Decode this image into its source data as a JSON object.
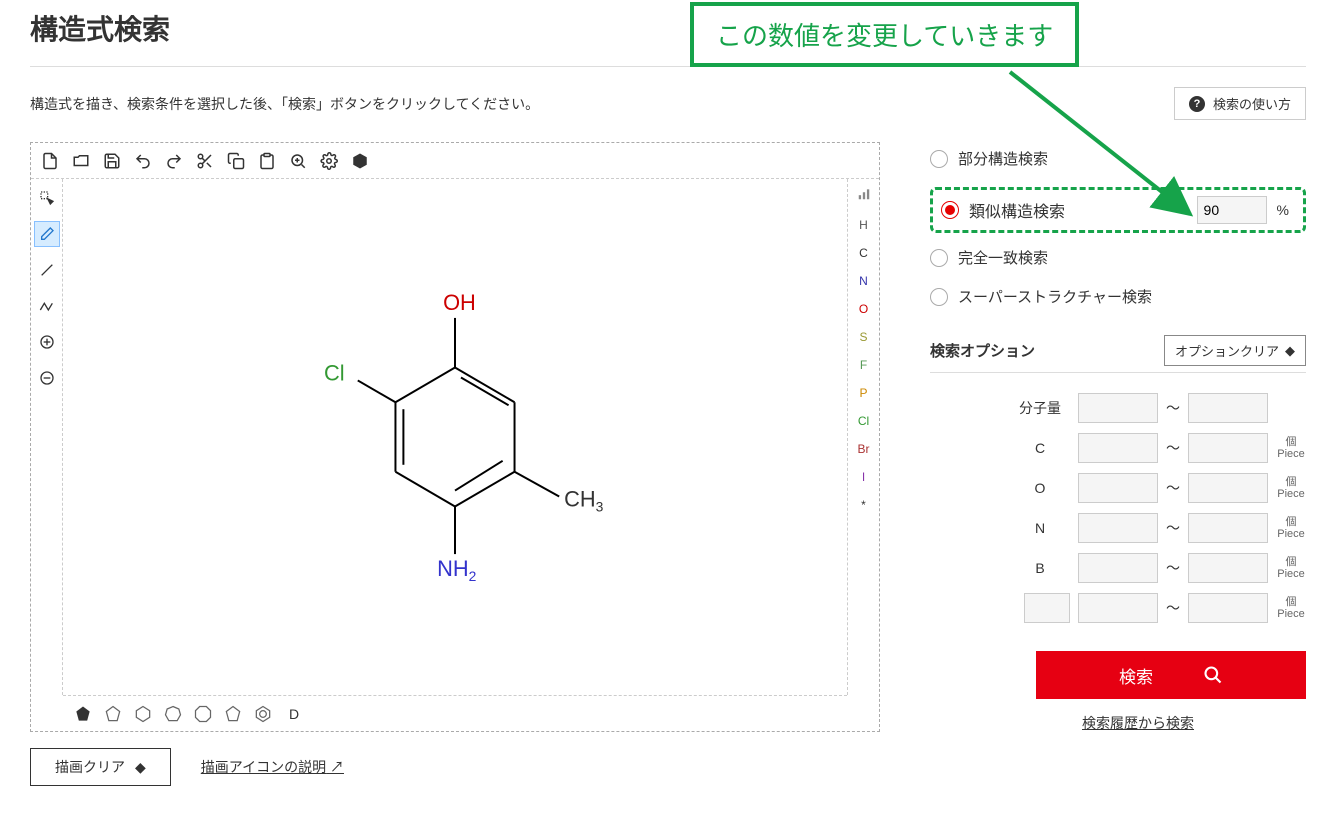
{
  "page_title": "構造式検索",
  "instruction": "構造式を描き、検索条件を選択した後、「検索」ボタンをクリックしてください。",
  "help_button": "検索の使い方",
  "callout_text": "この数値を変更していきます",
  "editor": {
    "top_tools": [
      "new",
      "open",
      "save",
      "undo",
      "redo",
      "cut",
      "copy",
      "paste",
      "zoom-sel",
      "settings",
      "info"
    ],
    "left_tools": [
      "select-arrow",
      "eraser",
      "single-bond",
      "zigzag",
      "plus",
      "minus"
    ],
    "left_selected_index": 1,
    "right_elements": [
      {
        "sym": "",
        "icon": "bars",
        "color": "#888"
      },
      {
        "sym": "H",
        "color": "#555"
      },
      {
        "sym": "C",
        "color": "#333"
      },
      {
        "sym": "N",
        "color": "#3333aa"
      },
      {
        "sym": "O",
        "color": "#cc0000"
      },
      {
        "sym": "S",
        "color": "#999933"
      },
      {
        "sym": "F",
        "color": "#559955"
      },
      {
        "sym": "P",
        "color": "#cc8800"
      },
      {
        "sym": "Cl",
        "color": "#339933"
      },
      {
        "sym": "Br",
        "color": "#aa3333"
      },
      {
        "sym": "I",
        "color": "#8833aa"
      },
      {
        "sym": "*",
        "color": "#333"
      }
    ],
    "bottom_tools": [
      "fill-ring",
      "pentagon",
      "hexagon",
      "heptagon",
      "octagon",
      "pentagon2",
      "benzene"
    ],
    "bottom_letter": "D",
    "molecule": {
      "oh_label": "OH",
      "oh_color": "#cc0000",
      "cl_label": "Cl",
      "cl_color": "#339933",
      "ch3_label": "CH",
      "ch3_sub": "3",
      "ch3_color": "#333",
      "nh2_label": "NH",
      "nh2_sub": "2",
      "nh2_color": "#3333cc"
    }
  },
  "under_editor": {
    "clear_button": "描画クリア",
    "icon_desc_link": "描画アイコンの説明"
  },
  "search_types": {
    "partial": "部分構造検索",
    "similar": "類似構造検索",
    "exact": "完全一致検索",
    "super": "スーパーストラクチャー検索",
    "selected": "similar",
    "similarity_value": "90",
    "percent": "%"
  },
  "options": {
    "header": "検索オプション",
    "clear_button": "オプションクリア",
    "rows": [
      {
        "label": "分子量",
        "unit": ""
      },
      {
        "label": "C",
        "unit_top": "個",
        "unit_bottom": "Piece"
      },
      {
        "label": "O",
        "unit_top": "個",
        "unit_bottom": "Piece"
      },
      {
        "label": "N",
        "unit_top": "個",
        "unit_bottom": "Piece"
      },
      {
        "label": "B",
        "unit_top": "個",
        "unit_bottom": "Piece"
      },
      {
        "label": "",
        "unit_top": "個",
        "unit_bottom": "Piece",
        "editable_label": true
      }
    ],
    "tilde": "～"
  },
  "search_button": "検索",
  "history_link": "検索履歴から検索",
  "colors": {
    "accent_red": "#e60012",
    "callout_green": "#16a34a"
  }
}
